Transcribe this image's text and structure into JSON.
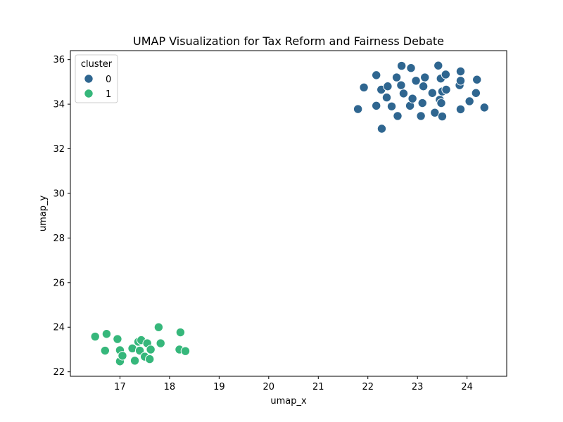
{
  "chart_data": {
    "type": "scatter",
    "title": "UMAP Visualization for Tax Reform and Fairness Debate",
    "xlabel": "umap_x",
    "ylabel": "umap_y",
    "xlim": [
      16.0,
      24.8
    ],
    "ylim": [
      21.8,
      36.4
    ],
    "xticks": [
      17,
      18,
      19,
      20,
      21,
      22,
      23,
      24
    ],
    "yticks": [
      22,
      24,
      26,
      28,
      30,
      32,
      34,
      36
    ],
    "grid": false,
    "legend": {
      "title": "cluster",
      "placement": "top-left"
    },
    "series": [
      {
        "name": "0",
        "color": "#2f6690",
        "points": [
          [
            21.8,
            33.78
          ],
          [
            21.92,
            34.75
          ],
          [
            22.17,
            35.3
          ],
          [
            22.17,
            33.93
          ],
          [
            22.27,
            34.65
          ],
          [
            22.28,
            32.9
          ],
          [
            22.38,
            34.3
          ],
          [
            22.4,
            34.8
          ],
          [
            22.48,
            33.9
          ],
          [
            22.58,
            35.2
          ],
          [
            22.6,
            33.47
          ],
          [
            22.67,
            34.85
          ],
          [
            22.68,
            35.72
          ],
          [
            22.72,
            34.48
          ],
          [
            22.85,
            33.93
          ],
          [
            22.87,
            35.62
          ],
          [
            22.9,
            34.25
          ],
          [
            22.97,
            35.05
          ],
          [
            23.07,
            33.47
          ],
          [
            23.1,
            34.05
          ],
          [
            23.12,
            34.8
          ],
          [
            23.15,
            35.2
          ],
          [
            23.3,
            34.5
          ],
          [
            23.35,
            33.62
          ],
          [
            23.42,
            35.73
          ],
          [
            23.45,
            34.2
          ],
          [
            23.47,
            35.15
          ],
          [
            23.48,
            34.05
          ],
          [
            23.5,
            33.45
          ],
          [
            23.5,
            34.57
          ],
          [
            23.57,
            35.33
          ],
          [
            23.58,
            34.65
          ],
          [
            23.85,
            34.85
          ],
          [
            23.87,
            35.05
          ],
          [
            23.87,
            35.47
          ],
          [
            23.87,
            33.77
          ],
          [
            24.05,
            34.13
          ],
          [
            24.18,
            34.5
          ],
          [
            24.2,
            35.1
          ],
          [
            24.35,
            33.85
          ]
        ]
      },
      {
        "name": "1",
        "color": "#36b77b",
        "points": [
          [
            16.5,
            23.58
          ],
          [
            16.7,
            22.95
          ],
          [
            16.73,
            23.7
          ],
          [
            16.95,
            23.47
          ],
          [
            17.0,
            22.97
          ],
          [
            17.0,
            22.47
          ],
          [
            17.05,
            22.72
          ],
          [
            17.25,
            23.05
          ],
          [
            17.3,
            22.5
          ],
          [
            17.37,
            23.35
          ],
          [
            17.4,
            22.95
          ],
          [
            17.43,
            23.42
          ],
          [
            17.5,
            22.68
          ],
          [
            17.55,
            23.28
          ],
          [
            17.6,
            22.57
          ],
          [
            17.62,
            23.0
          ],
          [
            17.78,
            24.0
          ],
          [
            17.82,
            23.28
          ],
          [
            18.2,
            23.0
          ],
          [
            18.22,
            23.77
          ],
          [
            18.32,
            22.93
          ]
        ]
      }
    ]
  }
}
